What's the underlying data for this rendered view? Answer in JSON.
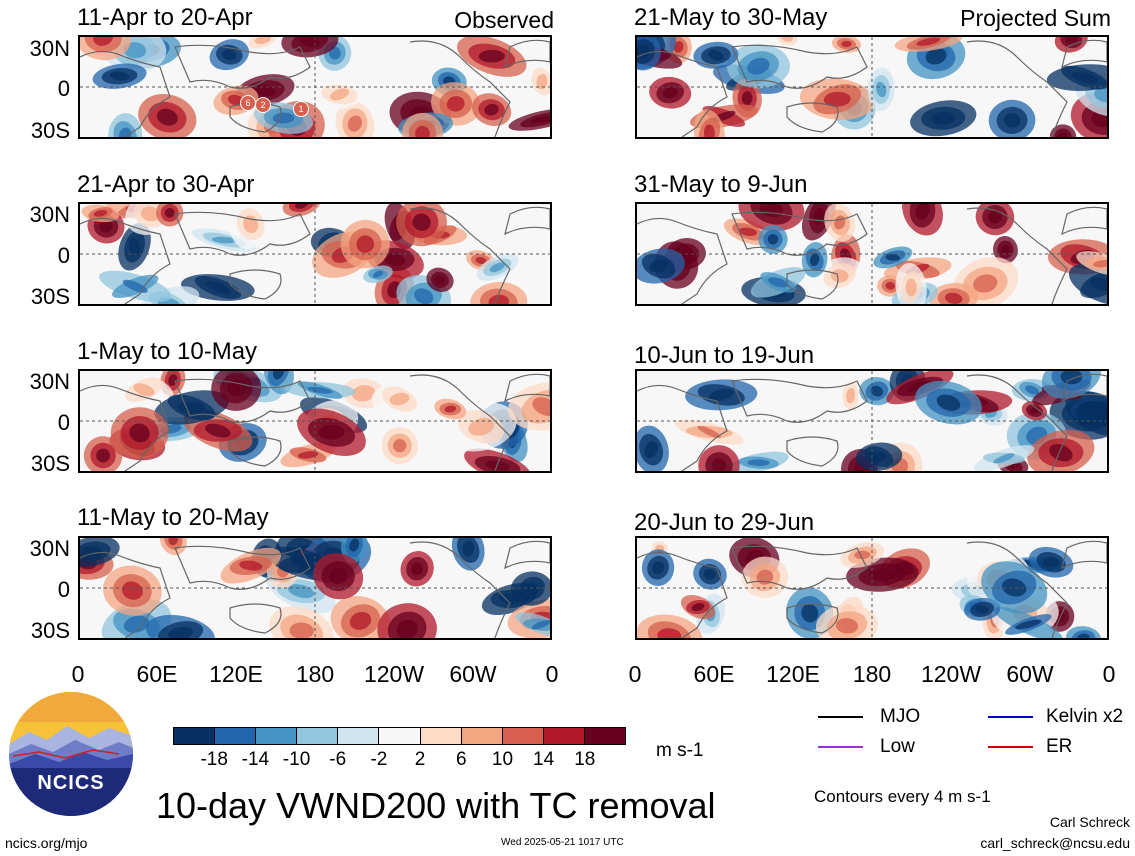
{
  "panels": [
    {
      "title": "11-Apr to 20-Apr",
      "label": "Observed"
    },
    {
      "title": "21-May to 30-May",
      "label": "Projected Sum"
    },
    {
      "title": "21-Apr to 30-Apr",
      "label": ""
    },
    {
      "title": "31-May to 9-Jun",
      "label": ""
    },
    {
      "title": "1-May to 10-May",
      "label": ""
    },
    {
      "title": "10-Jun to 19-Jun",
      "label": ""
    },
    {
      "title": "11-May to 20-May",
      "label": ""
    },
    {
      "title": "20-Jun to 29-Jun",
      "label": ""
    }
  ],
  "y_ticks": [
    "30N",
    "0",
    "30S"
  ],
  "x_ticks": [
    "0",
    "60E",
    "120E",
    "180",
    "120W",
    "60W",
    "0"
  ],
  "colorbar": {
    "colors": [
      "#053061",
      "#2166ac",
      "#4393c3",
      "#92c5de",
      "#d1e5f0",
      "#f7f7f7",
      "#fddbc7",
      "#f4a582",
      "#d6604d",
      "#b2182b",
      "#67001f"
    ],
    "ticks": [
      "-18",
      "-14",
      "-10",
      "-6",
      "-2",
      "2",
      "6",
      "10",
      "14",
      "18"
    ],
    "units": "m s-1"
  },
  "legend": {
    "items": [
      {
        "label": "MJO",
        "color": "#000000"
      },
      {
        "label": "Kelvin x2",
        "color": "#0000cc"
      },
      {
        "label": "Low",
        "color": "#9933cc"
      },
      {
        "label": "ER",
        "color": "#cc0000"
      }
    ],
    "contours_note": "Contours every 4 m s-1"
  },
  "main_title": "10-day VWND200 with TC removal",
  "logo_text": "NCICS",
  "footer": {
    "site": "ncics.org/mjo",
    "timestamp": "Wed 2025-05-21 1017 UTC",
    "author": "Carl Schreck",
    "email": "carl_schreck@ncsu.edu"
  },
  "tc_markers": [
    "6",
    "2",
    "1"
  ]
}
